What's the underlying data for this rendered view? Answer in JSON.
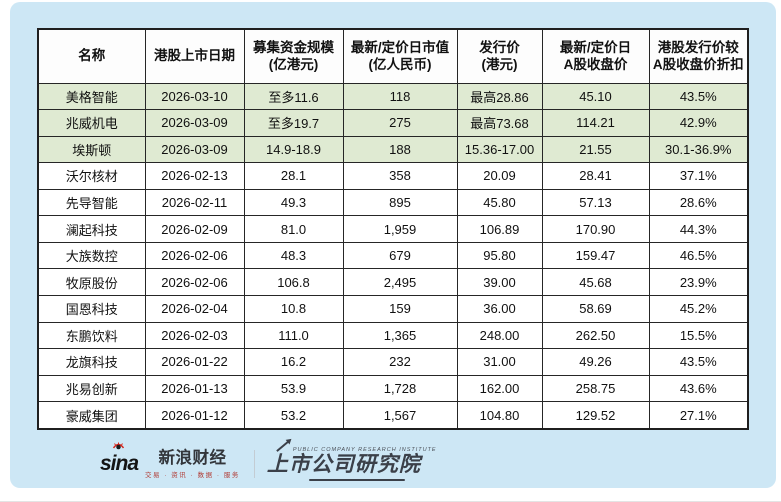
{
  "chart_data": {
    "type": "table",
    "title": "",
    "columns": [
      "名称",
      "港股上市日期",
      "募集资金规模\n(亿港元)",
      "最新/定价日市值\n(亿人民币)",
      "发行价\n(港元)",
      "最新/定价日\nA股收盘价",
      "港股发行价较\nA股收盘价折扣"
    ],
    "rows": [
      [
        "美格智能",
        "2026-03-10",
        "至多11.6",
        "118",
        "最高28.86",
        "45.10",
        "43.5%"
      ],
      [
        "兆威机电",
        "2026-03-09",
        "至多19.7",
        "275",
        "最高73.68",
        "114.21",
        "42.9%"
      ],
      [
        "埃斯顿",
        "2026-03-09",
        "14.9-18.9",
        "188",
        "15.36-17.00",
        "21.55",
        "30.1-36.9%"
      ],
      [
        "沃尔核材",
        "2026-02-13",
        "28.1",
        "358",
        "20.09",
        "28.41",
        "37.1%"
      ],
      [
        "先导智能",
        "2026-02-11",
        "49.3",
        "895",
        "45.80",
        "57.13",
        "28.6%"
      ],
      [
        "澜起科技",
        "2026-02-09",
        "81.0",
        "1,959",
        "106.89",
        "170.90",
        "44.3%"
      ],
      [
        "大族数控",
        "2026-02-06",
        "48.3",
        "679",
        "95.80",
        "159.47",
        "46.5%"
      ],
      [
        "牧原股份",
        "2026-02-06",
        "106.8",
        "2,495",
        "39.00",
        "45.68",
        "23.9%"
      ],
      [
        "国恩科技",
        "2026-02-04",
        "10.8",
        "159",
        "36.00",
        "58.69",
        "45.2%"
      ],
      [
        "东鹏饮料",
        "2026-02-03",
        "111.0",
        "1,365",
        "248.00",
        "262.50",
        "15.5%"
      ],
      [
        "龙旗科技",
        "2026-01-22",
        "16.2",
        "232",
        "31.00",
        "49.26",
        "43.5%"
      ],
      [
        "兆易创新",
        "2026-01-13",
        "53.9",
        "1,728",
        "162.00",
        "258.75",
        "43.6%"
      ],
      [
        "豪威集团",
        "2026-01-12",
        "53.2",
        "1,567",
        "104.80",
        "129.52",
        "27.1%"
      ]
    ],
    "highlighted_row_indexes": [
      0,
      1,
      2
    ],
    "layout": {
      "grid": "on",
      "highlight_meaning": "most-recent listings"
    }
  },
  "footer": {
    "sina_wordmark": "sina",
    "sina_brand": "新浪财经",
    "sina_tagline": "交易 · 资讯 · 数据 · 服务",
    "institute_en": "PUBLIC COMPANY RESEARCH INSTITUTE",
    "institute": "上市公司研究院"
  },
  "colors": {
    "panel_bg": "#cde7f5",
    "row_highlight": "#dfead2",
    "table_border": "#262626",
    "sina_red": "#d5281e",
    "logo_dark": "#3b4049"
  }
}
